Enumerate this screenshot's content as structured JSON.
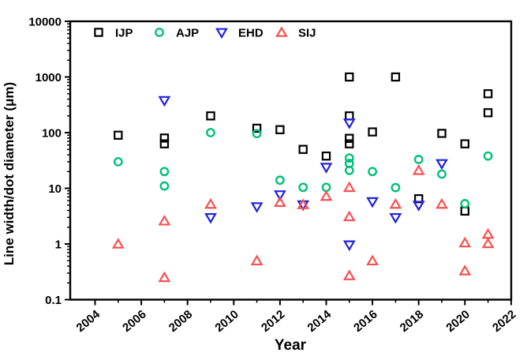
{
  "figure": {
    "background": "#ffffff"
  },
  "chart_data": {
    "type": "scatter",
    "title": "",
    "xlabel": "Year",
    "ylabel": "Line width/dot diameter (μm)",
    "grid": "off",
    "x_axis": {
      "range": [
        2003,
        2022.4
      ],
      "major_ticks": [
        2004,
        2006,
        2008,
        2010,
        2012,
        2014,
        2016,
        2018,
        2020,
        2022
      ],
      "minor_ticks": [
        2005,
        2007,
        2009,
        2011,
        2013,
        2015,
        2017,
        2019,
        2021
      ],
      "tick_label_rotation_deg": -40
    },
    "y_axis": {
      "scale": "log",
      "range": [
        0.1,
        10000
      ],
      "major_tick_values": [
        10000,
        1000,
        100,
        10,
        1,
        0.1
      ],
      "major_tick_labels": [
        "10000",
        "1000",
        "100",
        "10",
        "1",
        "0.1"
      ]
    },
    "legend": {
      "position": "top-inside-horizontal"
    },
    "series": [
      {
        "name": "IJP",
        "marker": "square",
        "color": "#000000",
        "points": [
          [
            2005,
            90
          ],
          [
            2007,
            80
          ],
          [
            2007,
            63
          ],
          [
            2009,
            200
          ],
          [
            2011,
            120
          ],
          [
            2012,
            113
          ],
          [
            2013,
            50
          ],
          [
            2014,
            38
          ],
          [
            2015,
            1000
          ],
          [
            2015,
            200
          ],
          [
            2015,
            79
          ],
          [
            2015,
            63
          ],
          [
            2016,
            103
          ],
          [
            2017,
            1000
          ],
          [
            2018,
            6.5
          ],
          [
            2019,
            97
          ],
          [
            2020,
            63
          ],
          [
            2020,
            3.9
          ],
          [
            2021,
            500
          ],
          [
            2021,
            228
          ]
        ]
      },
      {
        "name": "AJP",
        "marker": "circle",
        "color": "#00C07A",
        "points": [
          [
            2005,
            30
          ],
          [
            2007,
            20
          ],
          [
            2007,
            11
          ],
          [
            2009,
            100
          ],
          [
            2011,
            96
          ],
          [
            2012,
            14
          ],
          [
            2013,
            10.4
          ],
          [
            2014,
            10.4
          ],
          [
            2015,
            35
          ],
          [
            2015,
            28
          ],
          [
            2015,
            21
          ],
          [
            2016,
            20
          ],
          [
            2017,
            10.3
          ],
          [
            2018,
            33
          ],
          [
            2019,
            18
          ],
          [
            2020,
            5.3
          ],
          [
            2021,
            38
          ]
        ]
      },
      {
        "name": "EHD",
        "marker": "triangle-down",
        "color": "#2121E0",
        "points": [
          [
            2007,
            380
          ],
          [
            2009,
            3
          ],
          [
            2011,
            4.7
          ],
          [
            2012,
            7.7
          ],
          [
            2013,
            5.1
          ],
          [
            2014,
            24
          ],
          [
            2015,
            150
          ],
          [
            2015,
            0.97
          ],
          [
            2016,
            5.8
          ],
          [
            2017,
            3
          ],
          [
            2018,
            5
          ],
          [
            2019,
            28
          ]
        ]
      },
      {
        "name": "SIJ",
        "marker": "triangle-up",
        "color": "#FA5050",
        "points": [
          [
            2005,
            1
          ],
          [
            2007,
            2.6
          ],
          [
            2007,
            0.25
          ],
          [
            2009,
            5.2
          ],
          [
            2011,
            0.5
          ],
          [
            2012,
            5.6
          ],
          [
            2013,
            5.1
          ],
          [
            2014,
            7.2
          ],
          [
            2015,
            10.4
          ],
          [
            2015,
            3.1
          ],
          [
            2015,
            0.27
          ],
          [
            2016,
            0.5
          ],
          [
            2017,
            5.2
          ],
          [
            2018,
            21
          ],
          [
            2019,
            5.2
          ],
          [
            2020,
            1.05
          ],
          [
            2020,
            0.33
          ],
          [
            2021,
            1.5
          ],
          [
            2021,
            1.02
          ]
        ]
      }
    ]
  }
}
